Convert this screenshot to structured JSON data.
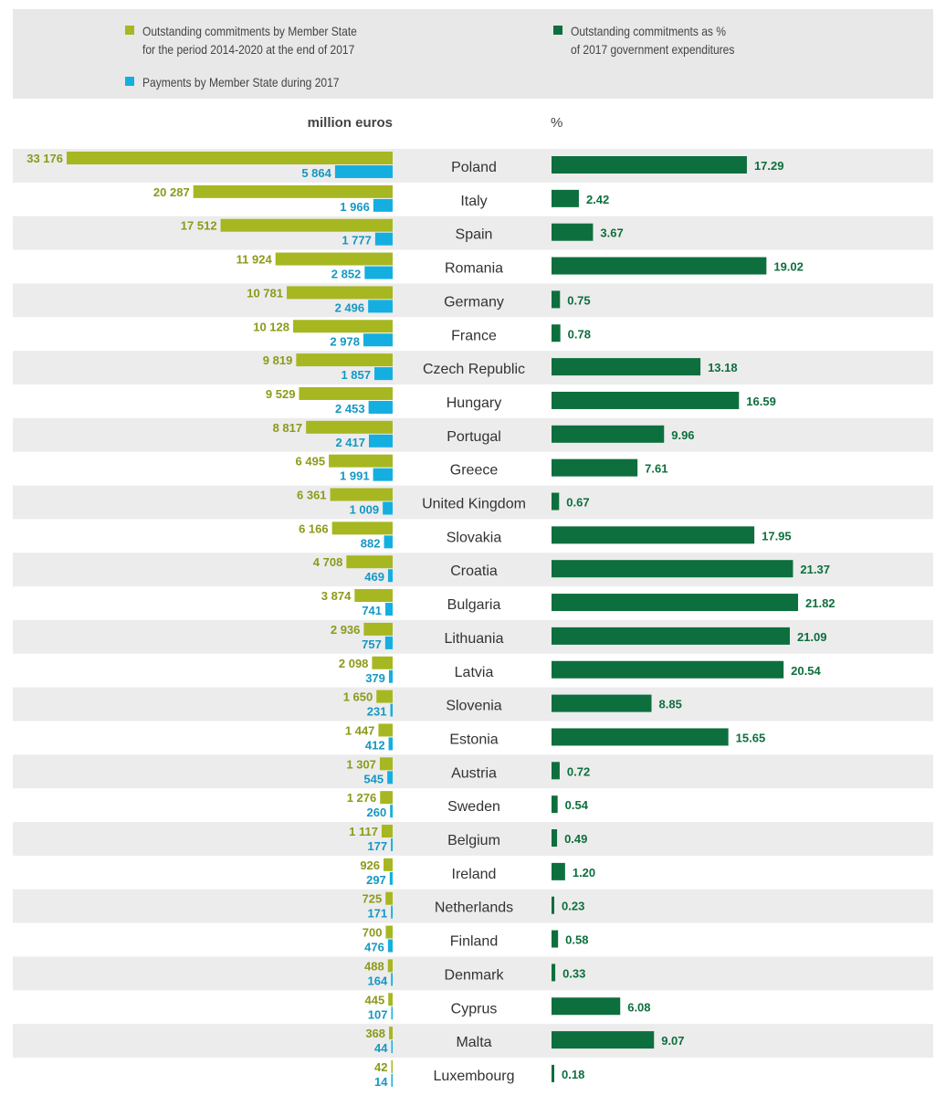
{
  "legend": {
    "commitments": "Outstanding commitments by Member State\nfor the period 2014-2020 at the end of 2017",
    "payments": "Payments by Member State during 2017",
    "percent": "Outstanding commitments as %\nof 2017 government expenditures"
  },
  "units": {
    "left": "million euros",
    "right": "%"
  },
  "colors": {
    "commitments": "#a7b721",
    "payments": "#14afe0",
    "percent": "#0d6f3d",
    "stripe": "#ececec",
    "country_text": "#333333",
    "legend_bg": "#e8e8e8"
  },
  "chart_data": {
    "type": "bar",
    "categories": [
      "Poland",
      "Italy",
      "Spain",
      "Romania",
      "Germany",
      "France",
      "Czech Republic",
      "Hungary",
      "Portugal",
      "Greece",
      "United Kingdom",
      "Slovakia",
      "Croatia",
      "Bulgaria",
      "Lithuania",
      "Latvia",
      "Slovenia",
      "Estonia",
      "Austria",
      "Sweden",
      "Belgium",
      "Ireland",
      "Netherlands",
      "Finland",
      "Denmark",
      "Cyprus",
      "Malta",
      "Luxembourg"
    ],
    "series": [
      {
        "name": "Outstanding commitments by Member State for the period 2014-2020 at the end of 2017",
        "unit": "million euros",
        "values": [
          33176,
          20287,
          17512,
          11924,
          10781,
          10128,
          9819,
          9529,
          8817,
          6495,
          6361,
          6166,
          4708,
          3874,
          2936,
          2098,
          1650,
          1447,
          1307,
          1276,
          1117,
          926,
          725,
          700,
          488,
          445,
          368,
          42
        ],
        "labels": [
          "33 176",
          "20 287",
          "17 512",
          "11 924",
          "10 781",
          "10 128",
          "9 819",
          "9 529",
          "8 817",
          "6 495",
          "6 361",
          "6 166",
          "4 708",
          "3 874",
          "2 936",
          "2 098",
          "1 650",
          "1 447",
          "1 307",
          "1 276",
          "1 117",
          "926",
          "725",
          "700",
          "488",
          "445",
          "368",
          "42"
        ]
      },
      {
        "name": "Payments by Member State during 2017",
        "unit": "million euros",
        "values": [
          5864,
          1966,
          1777,
          2852,
          2496,
          2978,
          1857,
          2453,
          2417,
          1991,
          1009,
          882,
          469,
          741,
          757,
          379,
          231,
          412,
          545,
          260,
          177,
          297,
          171,
          476,
          164,
          107,
          44,
          14
        ],
        "labels": [
          "5 864",
          "1 966",
          "1 777",
          "2 852",
          "2 496",
          "2 978",
          "1 857",
          "2 453",
          "2 417",
          "1 991",
          "1 009",
          "882",
          "469",
          "741",
          "757",
          "379",
          "231",
          "412",
          "545",
          "260",
          "177",
          "297",
          "171",
          "476",
          "164",
          "107",
          "44",
          "14"
        ]
      },
      {
        "name": "Outstanding commitments as % of 2017 government expenditures",
        "unit": "%",
        "values": [
          17.29,
          2.42,
          3.67,
          19.02,
          0.75,
          0.78,
          13.18,
          16.59,
          9.96,
          7.61,
          0.67,
          17.95,
          21.37,
          21.82,
          21.09,
          20.54,
          8.85,
          15.65,
          0.72,
          0.54,
          0.49,
          1.2,
          0.23,
          0.58,
          0.33,
          6.08,
          9.07,
          0.18
        ],
        "labels": [
          "17.29",
          "2.42",
          "3.67",
          "19.02",
          "0.75",
          "0.78",
          "13.18",
          "16.59",
          "9.96",
          "7.61",
          "0.67",
          "17.95",
          "21.37",
          "21.82",
          "21.09",
          "20.54",
          "8.85",
          "15.65",
          "0.72",
          "0.54",
          "0.49",
          "1.20",
          "0.23",
          "0.58",
          "0.33",
          "6.08",
          "9.07",
          "0.18"
        ]
      }
    ],
    "grid": false,
    "legend_position": "top"
  }
}
